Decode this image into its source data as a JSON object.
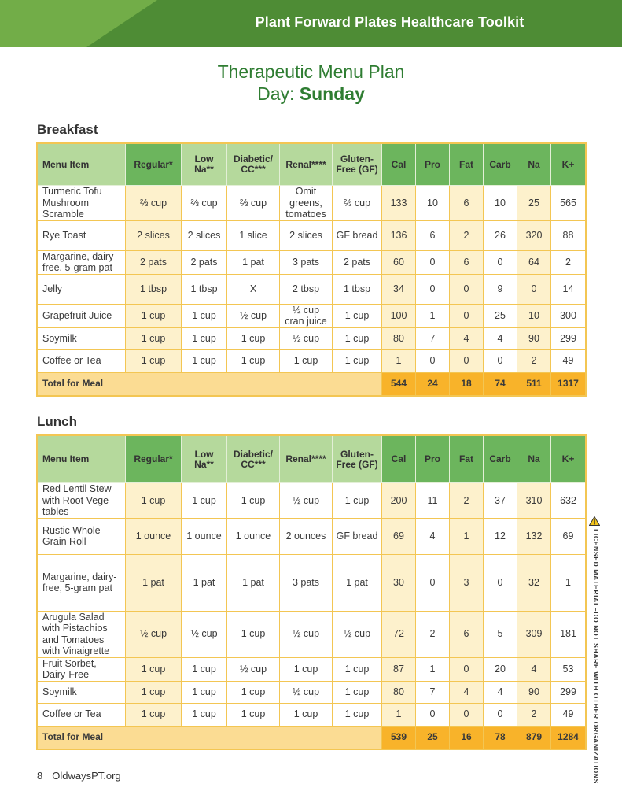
{
  "header": {
    "title": "Plant Forward Plates Healthcare Toolkit"
  },
  "page": {
    "title": "Therapeutic Menu Plan",
    "day_label": "Day:",
    "day": "Sunday"
  },
  "columns": [
    "Menu Item",
    "Regular*",
    "Low Na**",
    "Diabetic/ CC***",
    "Renal****",
    "Gluten-Free (GF)",
    "Cal",
    "Pro",
    "Fat",
    "Carb",
    "Na",
    "K+"
  ],
  "colors": {
    "banner": "#4e8c35",
    "header_light": "#b5d99c",
    "header_dark": "#6cb55d",
    "shade": "#fdf1cc",
    "total_label": "#fbdc93",
    "total_values": "#f8b32a",
    "title_green": "#2f7d32"
  },
  "meals": [
    {
      "title": "Breakfast",
      "rows": [
        [
          "Turmeric Tofu Mushroom Scramble",
          "⅔ cup",
          "⅔ cup",
          "⅔ cup",
          "Omit greens, tomatoes",
          "⅔ cup",
          "133",
          "10",
          "6",
          "10",
          "25",
          "565"
        ],
        [
          "Rye Toast",
          "2 slices",
          "2 slices",
          "1 slice",
          "2 slices",
          "GF bread",
          "136",
          "6",
          "2",
          "26",
          "320",
          "88"
        ],
        [
          "Margarine, dairy-free, 5-gram pat",
          "2 pats",
          "2 pats",
          "1 pat",
          "3 pats",
          "2 pats",
          "60",
          "0",
          "6",
          "0",
          "64",
          "2"
        ],
        [
          "Jelly",
          "1 tbsp",
          "1 tbsp",
          "X",
          "2 tbsp",
          "1 tbsp",
          "34",
          "0",
          "0",
          "9",
          "0",
          "14"
        ],
        [
          "Grapefruit Juice",
          "1 cup",
          "1 cup",
          "½ cup",
          "½ cup cran juice",
          "1 cup",
          "100",
          "1",
          "0",
          "25",
          "10",
          "300"
        ],
        [
          "Soymilk",
          "1 cup",
          "1 cup",
          "1 cup",
          "½ cup",
          "1 cup",
          "80",
          "7",
          "4",
          "4",
          "90",
          "299"
        ],
        [
          "Coffee or Tea",
          "1 cup",
          "1 cup",
          "1 cup",
          "1 cup",
          "1 cup",
          "1",
          "0",
          "0",
          "0",
          "2",
          "49"
        ]
      ],
      "total": {
        "label": "Total for Meal",
        "values": [
          "544",
          "24",
          "18",
          "74",
          "511",
          "1317"
        ]
      }
    },
    {
      "title": "Lunch",
      "rows": [
        [
          "Red Lentil Stew with Root Vege-tables",
          "1 cup",
          "1 cup",
          "1 cup",
          "½ cup",
          "1 cup",
          "200",
          "11",
          "2",
          "37",
          "310",
          "632"
        ],
        [
          "Rustic Whole Grain Roll",
          "1 ounce",
          "1 ounce",
          "1 ounce",
          "2 ounces",
          "GF bread",
          "69",
          "4",
          "1",
          "12",
          "132",
          "69"
        ],
        [
          "Margarine, dairy-free, 5-gram pat",
          "1 pat",
          "1 pat",
          "1 pat",
          "3 pats",
          "1 pat",
          "30",
          "0",
          "3",
          "0",
          "32",
          "1"
        ],
        [
          "Arugula Salad with Pistachios and Tomatoes with Vinaigrette",
          "½ cup",
          "½ cup",
          "1 cup",
          "½ cup",
          "½ cup",
          "72",
          "2",
          "6",
          "5",
          "309",
          "181"
        ],
        [
          "Fruit Sorbet, Dairy-Free",
          "1 cup",
          "1 cup",
          "½ cup",
          "1 cup",
          "1 cup",
          "87",
          "1",
          "0",
          "20",
          "4",
          "53"
        ],
        [
          "Soymilk",
          "1 cup",
          "1 cup",
          "1 cup",
          "½ cup",
          "1 cup",
          "80",
          "7",
          "4",
          "4",
          "90",
          "299"
        ],
        [
          "Coffee or Tea",
          "1 cup",
          "1 cup",
          "1 cup",
          "1 cup",
          "1 cup",
          "1",
          "0",
          "0",
          "0",
          "2",
          "49"
        ]
      ],
      "total": {
        "label": "Total for Meal",
        "values": [
          "539",
          "25",
          "16",
          "78",
          "879",
          "1284"
        ]
      }
    }
  ],
  "side_notice": {
    "icon": "warning-triangle-icon",
    "text": "LICENSED MATERIAL–DO NOT SHARE WITH OTHER ORGANIZATIONS"
  },
  "footer": {
    "page_number": "8",
    "site": "OldwaysPT.org"
  }
}
